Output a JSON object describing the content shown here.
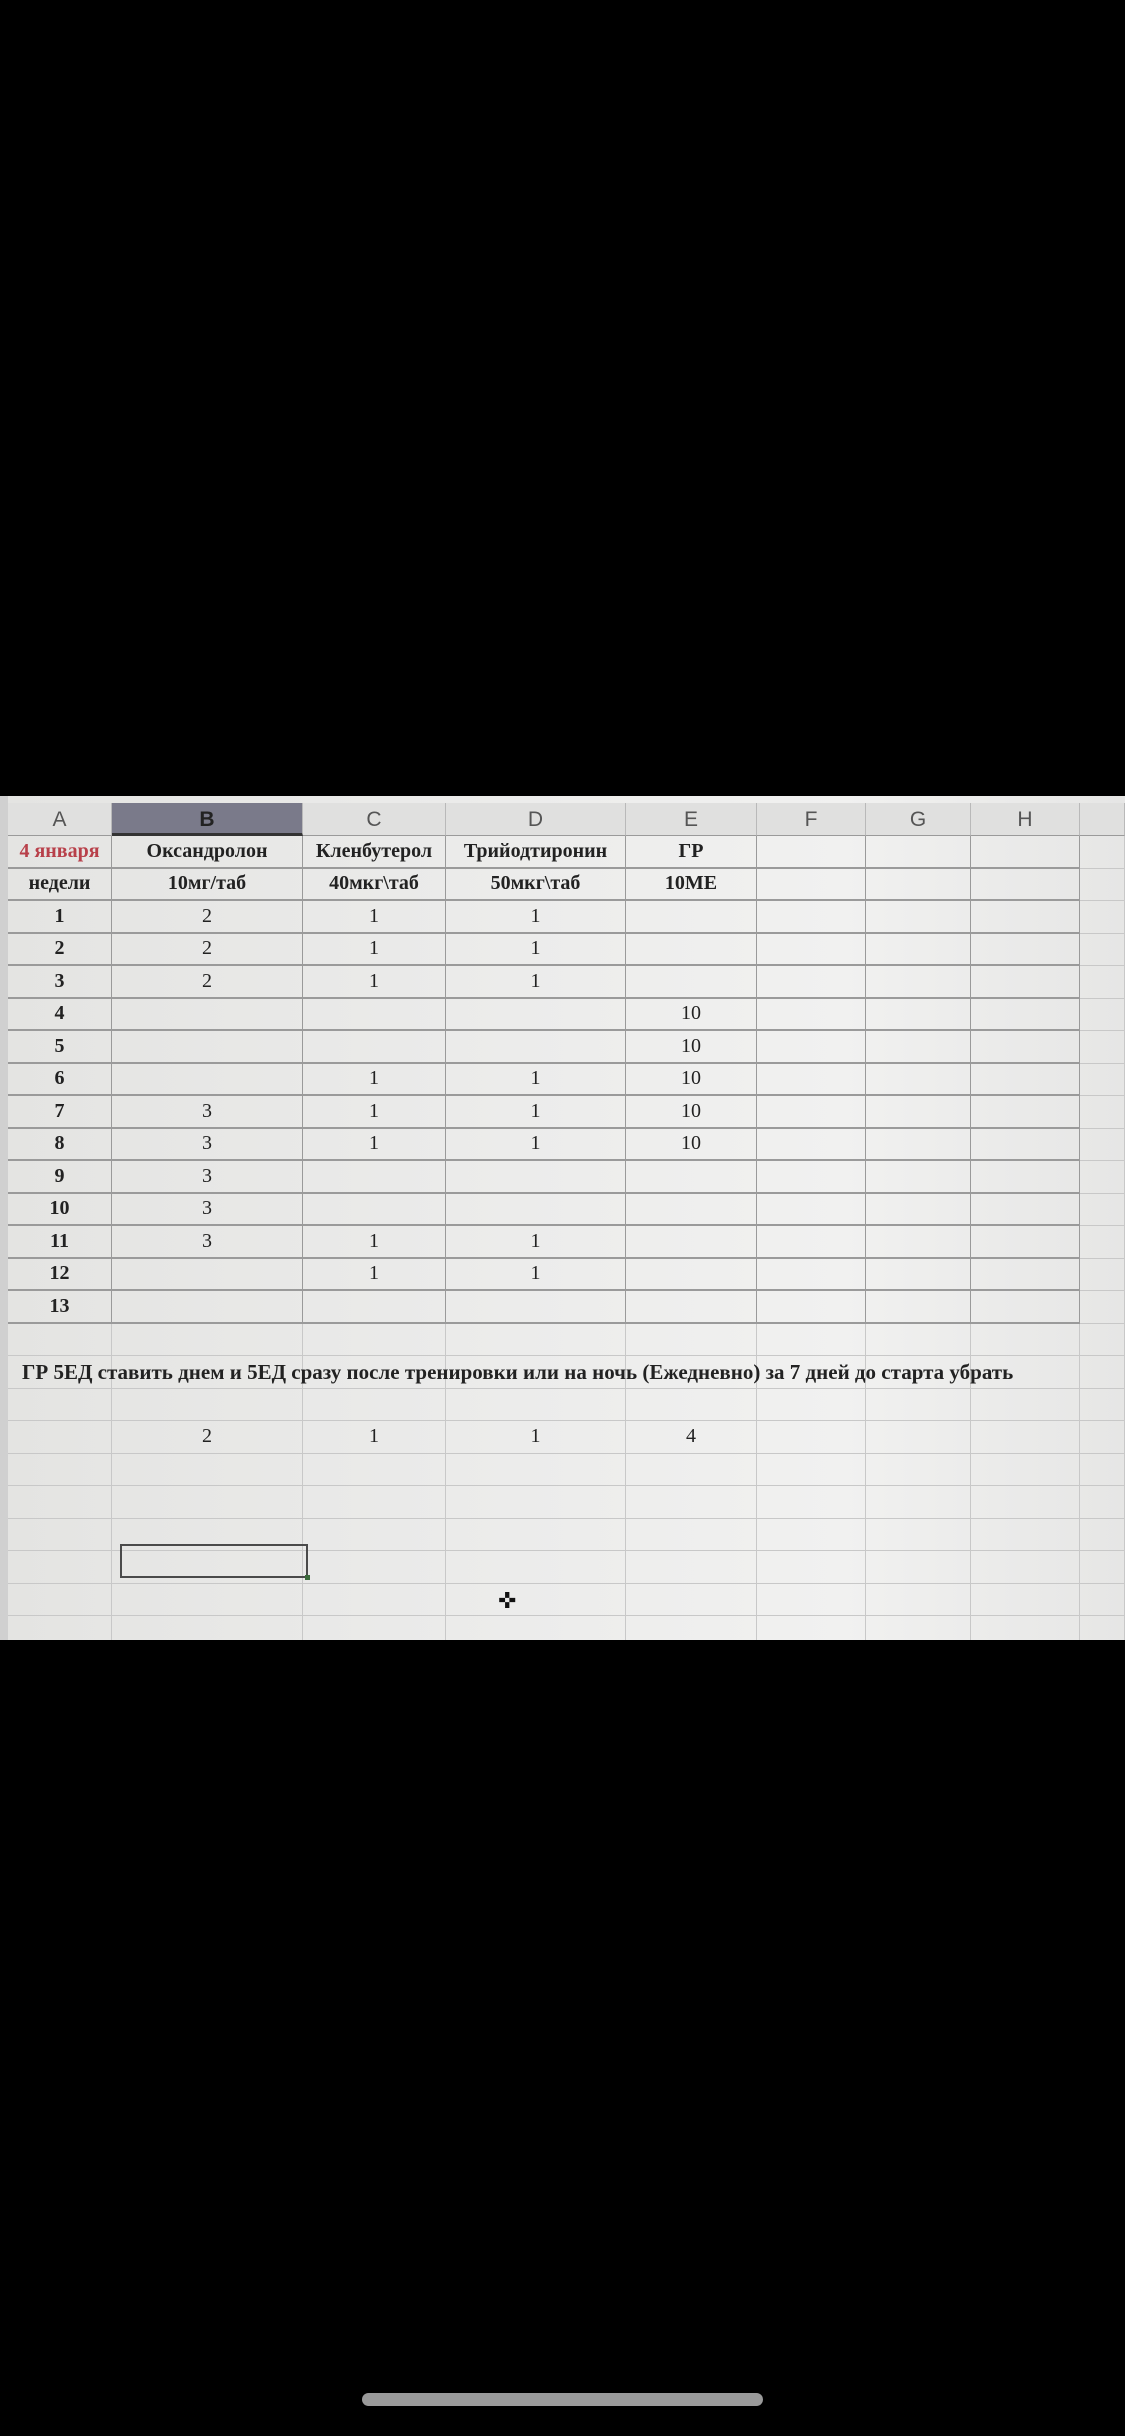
{
  "columns": [
    "A",
    "B",
    "C",
    "D",
    "E",
    "F",
    "G",
    "H"
  ],
  "selected_column": "B",
  "header_row_1": [
    "4 января",
    "Оксандролон",
    "Кленбутерол",
    "Трийодтиронин",
    "ГР",
    "",
    "",
    ""
  ],
  "header_row_2": [
    "недели",
    "10мг/таб",
    "40мкг\\таб",
    "50мкг\\таб",
    "10МЕ",
    "",
    "",
    ""
  ],
  "weeks": [
    [
      "1",
      "2",
      "1",
      "1",
      ""
    ],
    [
      "2",
      "2",
      "1",
      "1",
      ""
    ],
    [
      "3",
      "2",
      "1",
      "1",
      ""
    ],
    [
      "4",
      "",
      "",
      "",
      "10"
    ],
    [
      "5",
      "",
      "",
      "",
      "10"
    ],
    [
      "6",
      "",
      "1",
      "1",
      "10"
    ],
    [
      "7",
      "3",
      "1",
      "1",
      "10"
    ],
    [
      "8",
      "3",
      "1",
      "1",
      "10"
    ],
    [
      "9",
      "3",
      "",
      "",
      ""
    ],
    [
      "10",
      "3",
      "",
      "",
      ""
    ],
    [
      "11",
      "3",
      "1",
      "1",
      ""
    ],
    [
      "12",
      "",
      "1",
      "1",
      ""
    ],
    [
      "13",
      "",
      "",
      "",
      ""
    ]
  ],
  "note": "ГР 5ЕД ставить днем и 5ЕД сразу после тренировки или на ночь (Ежедневно) за 7 дней до старта убрать",
  "totals": [
    "",
    "2",
    "1",
    "1",
    "4"
  ],
  "cursor_icon": "cell-cross-cursor"
}
